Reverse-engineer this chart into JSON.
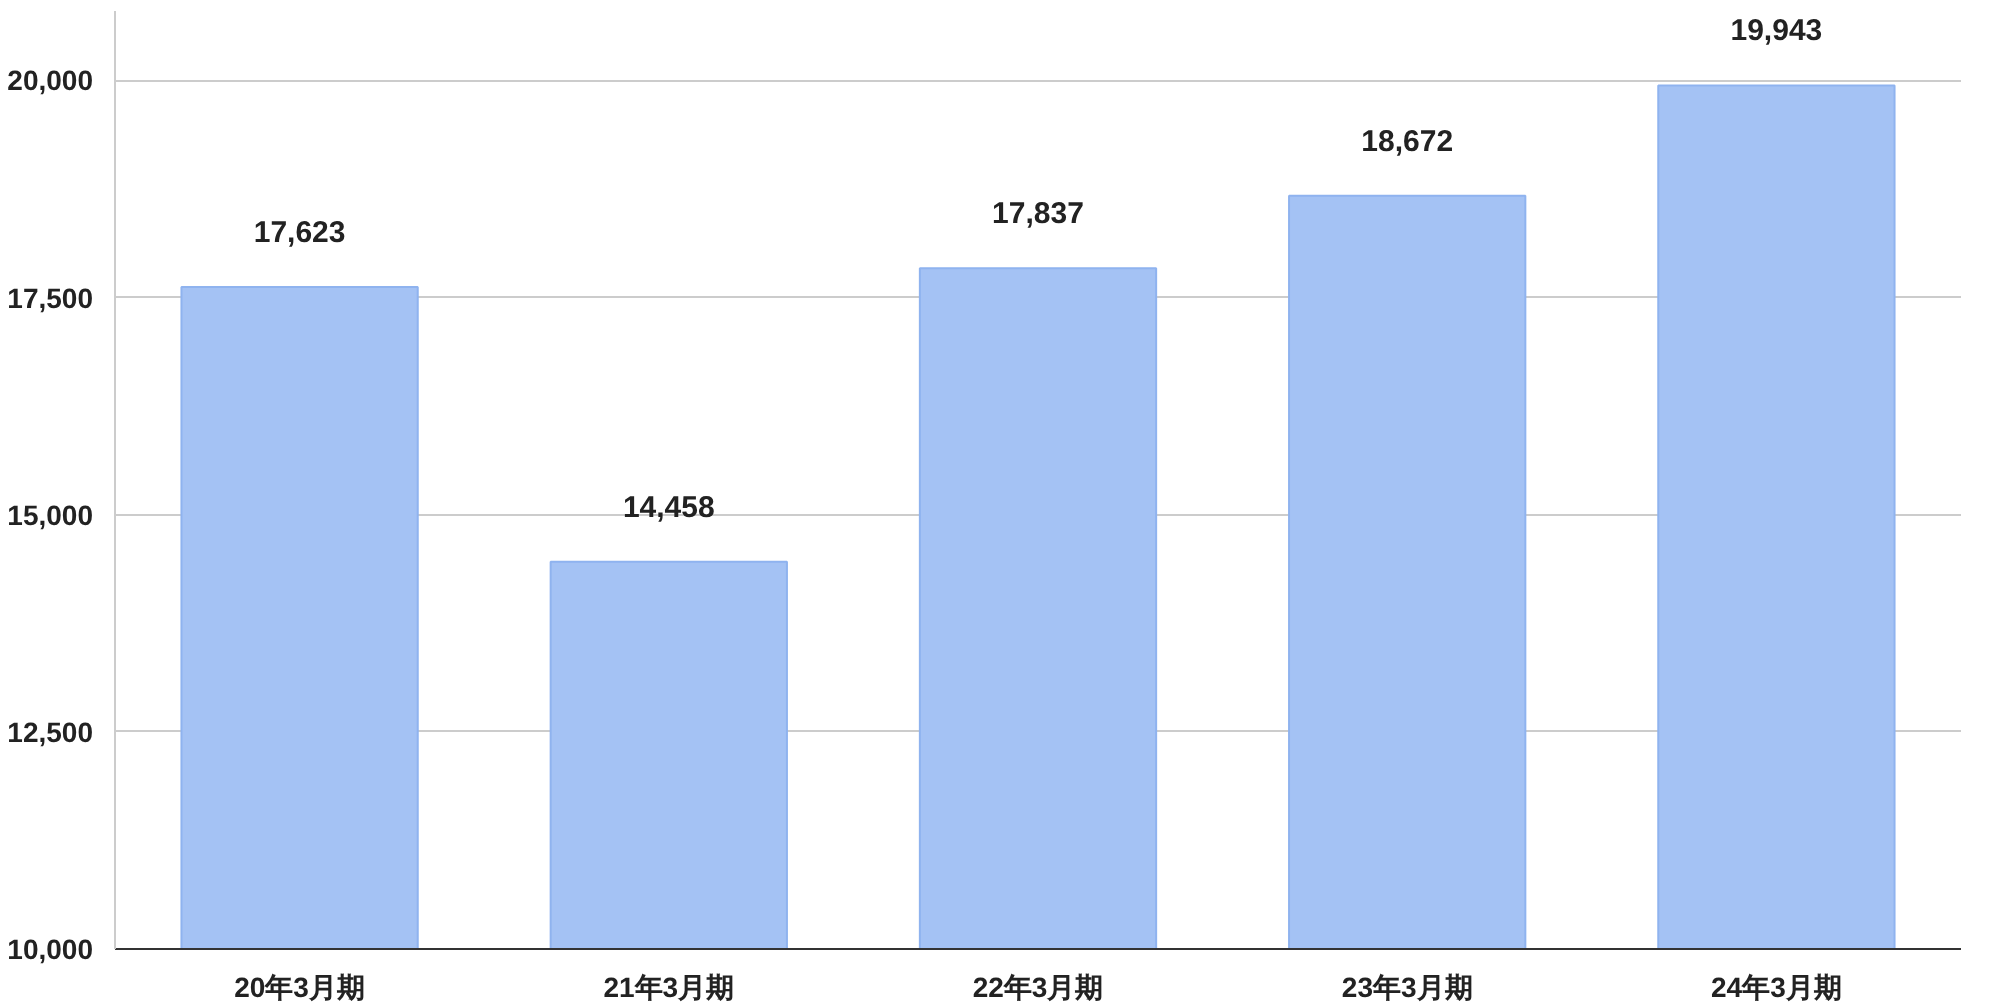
{
  "chart_data": {
    "type": "bar",
    "categories": [
      "20年3月期",
      "21年3月期",
      "22年3月期",
      "23年3月期",
      "24年3月期"
    ],
    "values": [
      17623,
      14458,
      17837,
      18672,
      19943
    ],
    "value_labels": [
      "17,623",
      "14,458",
      "17,837",
      "18,672",
      "19,943"
    ],
    "color": "#a4c2f4",
    "ylim": [
      10000,
      20800
    ],
    "yticks": [
      {
        "value": 10000,
        "label": "10,000"
      },
      {
        "value": 12500,
        "label": "12,500"
      },
      {
        "value": 15000,
        "label": "15,000"
      },
      {
        "value": 17500,
        "label": "17,500"
      },
      {
        "value": 20000,
        "label": "20,000"
      }
    ],
    "grid": "y"
  }
}
